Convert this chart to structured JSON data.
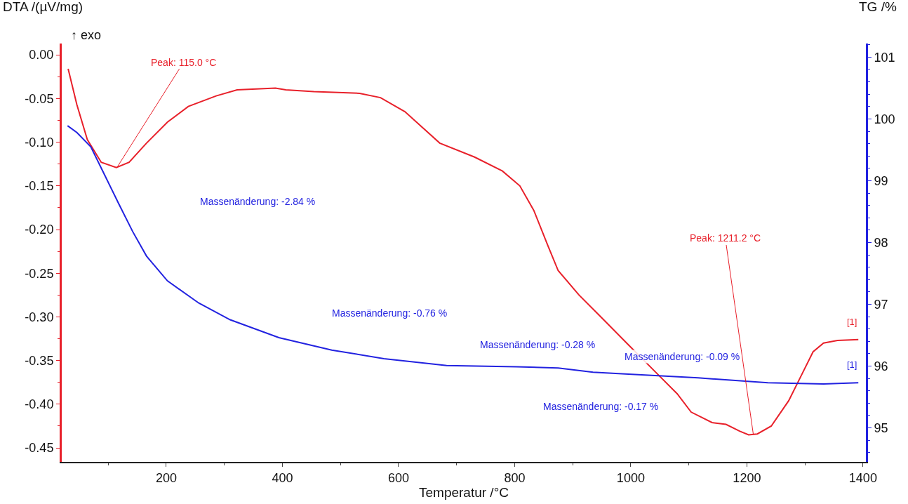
{
  "chart_data": {
    "type": "line",
    "xlabel": "Temperatur /°C",
    "ylabel": "DTA /(µV/mg)",
    "y2label": "TG /%",
    "xlim": [
      20,
      1405
    ],
    "xticks": [
      200,
      400,
      600,
      800,
      1000,
      1200,
      1400
    ],
    "ylim": [
      -0.466,
      0.013
    ],
    "yticks": [
      {
        "value": 0,
        "label": "0.00"
      },
      {
        "value": -0.05,
        "label": "-0.05"
      },
      {
        "value": -0.1,
        "label": "-0.10"
      },
      {
        "value": -0.15,
        "label": "-0.15"
      },
      {
        "value": -0.2,
        "label": "-0.20"
      },
      {
        "value": -0.25,
        "label": "-0.25"
      },
      {
        "value": -0.3,
        "label": "-0.30"
      },
      {
        "value": -0.35,
        "label": "-0.35"
      },
      {
        "value": -0.4,
        "label": "-0.40"
      },
      {
        "value": -0.45,
        "label": "-0.45"
      }
    ],
    "y2lim": [
      94.45,
      101.22
    ],
    "y2ticks": [
      95,
      96,
      97,
      98,
      99,
      100,
      101
    ],
    "marker": "none",
    "line_style": "solid",
    "series": [
      {
        "color": "#e8202a",
        "x": [
          31,
          46,
          64,
          88,
          114,
          136,
          166,
          202,
          238,
          286,
          322,
          388,
          406,
          454,
          533,
          569,
          611,
          671,
          731,
          779,
          809,
          833,
          857,
          875,
          911,
          947,
          996,
          1044,
          1080,
          1104,
          1140,
          1164,
          1188,
          1203,
          1218,
          1242,
          1272,
          1296,
          1314,
          1332,
          1356,
          1392
        ],
        "values": [
          -0.016,
          -0.057,
          -0.097,
          -0.123,
          -0.129,
          -0.123,
          -0.101,
          -0.077,
          -0.059,
          -0.047,
          -0.04,
          -0.038,
          -0.04,
          -0.042,
          -0.044,
          -0.049,
          -0.065,
          -0.101,
          -0.117,
          -0.133,
          -0.15,
          -0.178,
          -0.218,
          -0.247,
          -0.275,
          -0.299,
          -0.332,
          -0.364,
          -0.388,
          -0.409,
          -0.421,
          -0.423,
          -0.431,
          -0.435,
          -0.434,
          -0.425,
          -0.396,
          -0.364,
          -0.34,
          -0.33,
          -0.327,
          -0.326
        ]
      },
      {
        "color": "#2222e0",
        "axis": "y2",
        "x": [
          30,
          46,
          70,
          94,
          118,
          142,
          166,
          202,
          256,
          310,
          394,
          485,
          575,
          683,
          803,
          875,
          935,
          996,
          1116,
          1236,
          1332,
          1392
        ],
        "values": [
          99.89,
          99.78,
          99.55,
          99.09,
          98.63,
          98.18,
          97.78,
          97.38,
          97.02,
          96.75,
          96.46,
          96.26,
          96.12,
          96.01,
          95.99,
          95.97,
          95.9,
          95.87,
          95.81,
          95.73,
          95.71,
          95.73
        ]
      }
    ],
    "annotations": [
      "↑ exo",
      {
        "text": "Peak: 115.0 °C",
        "x": 115,
        "y": -0.129
      },
      {
        "text": "Peak: 1211.2 °C",
        "x": 1211.2,
        "y": -0.435
      },
      "Massenänderung: -2.84 %",
      "Massenänderung: -0.76 %",
      "Massenänderung: -0.28 %",
      "Massenänderung: -0.09 %",
      "Massenänderung: -0.17 %",
      "[1]",
      "[1]"
    ]
  }
}
